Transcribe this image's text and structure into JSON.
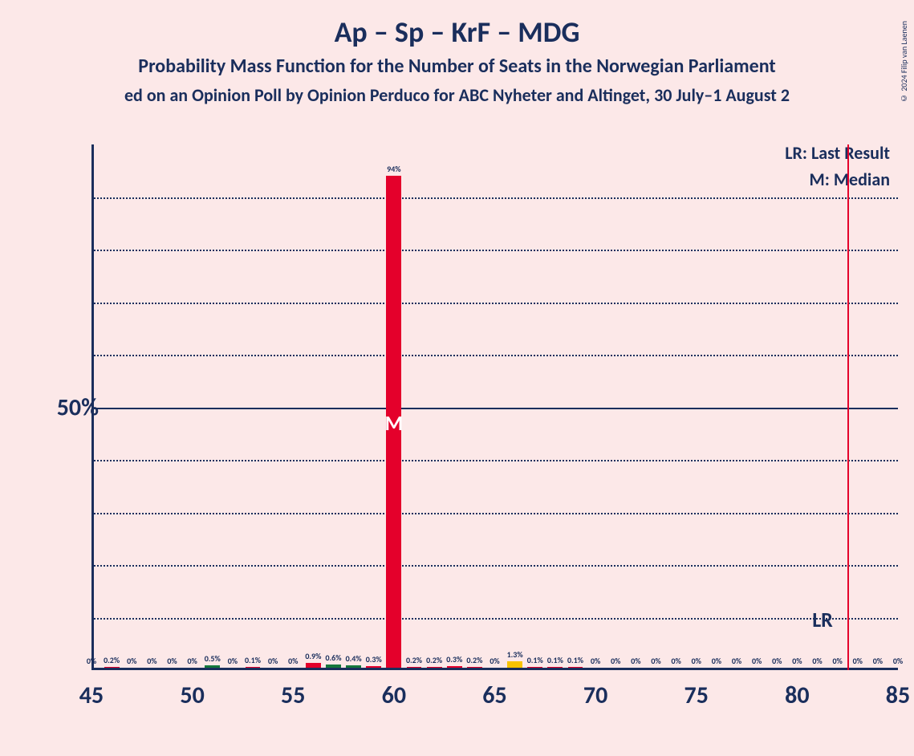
{
  "copyright": "© 2024 Filip van Laenen",
  "title": "Ap – Sp – KrF – MDG",
  "subtitle": "Probability Mass Function for the Number of Seats in the Norwegian Parliament",
  "subsubtitle": "ed on an Opinion Poll by Opinion Perduco for ABC Nyheter and Altinget, 30 July–1 August 2",
  "legend": {
    "lr": "LR: Last Result",
    "m": "M: Median"
  },
  "chart": {
    "type": "bar",
    "background_color": "#fce8e8",
    "title_color": "#1a2e5c",
    "axis_color": "#1a2e5c",
    "grid_color": "#1a2e5c",
    "bar_colors": {
      "ap": "#e4002b",
      "sp": "#14773c",
      "krf": "#f8c300",
      "mdg": "#4a9638"
    },
    "x_range": [
      45,
      85
    ],
    "x_ticks": [
      45,
      50,
      55,
      60,
      65,
      70,
      75,
      80,
      85
    ],
    "y_range": [
      0,
      100
    ],
    "y_ticks": [
      50
    ],
    "y_unit": "%",
    "y_gridlines": [
      10,
      20,
      30,
      40,
      50,
      60,
      70,
      80,
      90
    ],
    "y_gridline_solid": [
      50
    ],
    "bar_width_rel": 0.75,
    "lr_position": 82.5,
    "lr_label": "LR",
    "median_position": 60,
    "median_label": "M",
    "bars": [
      {
        "x": 45,
        "label": "0%",
        "value": 0,
        "color": "#e4002b"
      },
      {
        "x": 46,
        "label": "0.2%",
        "value": 0.2,
        "color": "#e4002b"
      },
      {
        "x": 47,
        "label": "0%",
        "value": 0,
        "color": "#e4002b"
      },
      {
        "x": 48,
        "label": "0%",
        "value": 0,
        "color": "#e4002b"
      },
      {
        "x": 49,
        "label": "0%",
        "value": 0,
        "color": "#e4002b"
      },
      {
        "x": 50,
        "label": "0%",
        "value": 0,
        "color": "#e4002b"
      },
      {
        "x": 51,
        "label": "0.5%",
        "value": 0.5,
        "color": "#14773c"
      },
      {
        "x": 52,
        "label": "0%",
        "value": 0,
        "color": "#e4002b"
      },
      {
        "x": 53,
        "label": "0.1%",
        "value": 0.1,
        "color": "#e4002b"
      },
      {
        "x": 54,
        "label": "0%",
        "value": 0,
        "color": "#e4002b"
      },
      {
        "x": 55,
        "label": "0%",
        "value": 0,
        "color": "#e4002b"
      },
      {
        "x": 56,
        "label": "0.9%",
        "value": 0.9,
        "color": "#e4002b"
      },
      {
        "x": 57,
        "label": "0.6%",
        "value": 0.6,
        "color": "#14773c"
      },
      {
        "x": 58,
        "label": "0.4%",
        "value": 0.4,
        "color": "#14773c"
      },
      {
        "x": 59,
        "label": "0.3%",
        "value": 0.3,
        "color": "#e4002b"
      },
      {
        "x": 60,
        "label": "94%",
        "value": 94,
        "color": "#e4002b"
      },
      {
        "x": 61,
        "label": "0.2%",
        "value": 0.2,
        "color": "#e4002b"
      },
      {
        "x": 62,
        "label": "0.2%",
        "value": 0.2,
        "color": "#e4002b"
      },
      {
        "x": 63,
        "label": "0.3%",
        "value": 0.3,
        "color": "#e4002b"
      },
      {
        "x": 64,
        "label": "0.2%",
        "value": 0.2,
        "color": "#e4002b"
      },
      {
        "x": 65,
        "label": "0%",
        "value": 0,
        "color": "#e4002b"
      },
      {
        "x": 66,
        "label": "1.3%",
        "value": 1.3,
        "color": "#f8c300"
      },
      {
        "x": 67,
        "label": "0.1%",
        "value": 0.1,
        "color": "#e4002b"
      },
      {
        "x": 68,
        "label": "0.1%",
        "value": 0.1,
        "color": "#e4002b"
      },
      {
        "x": 69,
        "label": "0.1%",
        "value": 0.1,
        "color": "#e4002b"
      },
      {
        "x": 70,
        "label": "0%",
        "value": 0,
        "color": "#e4002b"
      },
      {
        "x": 71,
        "label": "0%",
        "value": 0,
        "color": "#e4002b"
      },
      {
        "x": 72,
        "label": "0%",
        "value": 0,
        "color": "#e4002b"
      },
      {
        "x": 73,
        "label": "0%",
        "value": 0,
        "color": "#e4002b"
      },
      {
        "x": 74,
        "label": "0%",
        "value": 0,
        "color": "#e4002b"
      },
      {
        "x": 75,
        "label": "0%",
        "value": 0,
        "color": "#e4002b"
      },
      {
        "x": 76,
        "label": "0%",
        "value": 0,
        "color": "#e4002b"
      },
      {
        "x": 77,
        "label": "0%",
        "value": 0,
        "color": "#e4002b"
      },
      {
        "x": 78,
        "label": "0%",
        "value": 0,
        "color": "#e4002b"
      },
      {
        "x": 79,
        "label": "0%",
        "value": 0,
        "color": "#e4002b"
      },
      {
        "x": 80,
        "label": "0%",
        "value": 0,
        "color": "#e4002b"
      },
      {
        "x": 81,
        "label": "0%",
        "value": 0,
        "color": "#e4002b"
      },
      {
        "x": 82,
        "label": "0%",
        "value": 0,
        "color": "#e4002b"
      },
      {
        "x": 83,
        "label": "0%",
        "value": 0,
        "color": "#e4002b"
      },
      {
        "x": 84,
        "label": "0%",
        "value": 0,
        "color": "#e4002b"
      },
      {
        "x": 85,
        "label": "0%",
        "value": 0,
        "color": "#e4002b"
      }
    ]
  }
}
